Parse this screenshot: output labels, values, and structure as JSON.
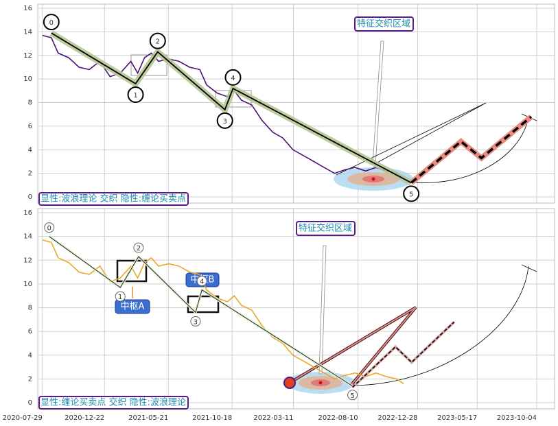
{
  "chart_data": [
    {
      "type": "line",
      "annotations": [
        "特征交织区域",
        "显性:波浪理论 交织 隐性:缠论买卖点"
      ],
      "ylim": [
        -0.52,
        16.35
      ],
      "yticks": [
        0,
        2,
        4,
        6,
        8,
        10,
        12,
        14,
        16
      ],
      "grid": true,
      "xlim": [
        "2020-07-18",
        "2023-11-15"
      ],
      "series": [
        {
          "color": "#4b0f7a",
          "x": [
            "2020-07-29",
            "2020-08-19",
            "2020-09-04",
            "2020-09-29",
            "2020-10-23",
            "2020-11-16",
            "2020-12-11",
            "2021-01-04",
            "2021-01-28",
            "2021-02-22",
            "2021-03-10",
            "2021-03-26",
            "2021-04-11",
            "2021-04-28",
            "2021-05-22",
            "2021-06-15",
            "2021-07-10",
            "2021-08-03",
            "2021-08-19",
            "2021-09-13",
            "2021-10-07",
            "2021-10-23",
            "2021-11-09",
            "2021-12-03",
            "2021-12-27",
            "2022-01-21",
            "2022-02-14",
            "2022-03-10",
            "2022-04-04",
            "2022-04-28",
            "2022-05-22",
            "2022-06-16",
            "2022-07-10",
            "2022-08-03",
            "2022-08-28",
            "2022-09-21",
            "2022-10-15",
            "2022-11-09",
            "2022-11-25"
          ],
          "values": [
            13.7,
            13.5,
            12.2,
            11.8,
            11,
            10.8,
            11.5,
            10.2,
            10.5,
            11.5,
            10.5,
            11.8,
            12.2,
            11.5,
            11.7,
            11.5,
            11,
            10.8,
            9.5,
            8.8,
            8.5,
            9,
            8.2,
            7.8,
            6.5,
            5.5,
            5,
            4,
            3.5,
            3,
            2.5,
            2,
            2.3,
            2.5,
            2.2,
            2.5,
            2.2,
            2,
            1.6
          ]
        },
        {
          "color": "#000000",
          "labels": [
            "0",
            "1",
            "2",
            "3",
            "4",
            "5"
          ],
          "x": [
            "2020-08-19",
            "2021-03-05",
            "2021-04-26",
            "2021-10-01",
            "2021-10-20",
            "2022-12-13"
          ],
          "values": [
            13.9,
            9.6,
            12.3,
            7.4,
            9.2,
            1.2
          ]
        },
        {
          "color": "#000000",
          "style": "dashed",
          "x": [
            "2022-12-13",
            "2023-04-09",
            "2023-05-27",
            "2023-09-21"
          ],
          "values": [
            1.2,
            4.7,
            3.3,
            6.8
          ]
        }
      ]
    },
    {
      "type": "line",
      "annotations": [
        "特征交织区域",
        "显性:缠论买卖点 交织 隐性:波浪理论",
        "中枢A",
        "中枢B"
      ],
      "ylim": [
        -0.52,
        16.35
      ],
      "yticks": [
        0,
        2,
        4,
        6,
        8,
        10,
        12,
        14,
        16
      ],
      "grid": true,
      "xlim": [
        "2020-07-18",
        "2023-11-15"
      ],
      "xticks": [
        "2020-07-29",
        "2020-12-22",
        "2021-05-21",
        "2021-10-18",
        "2022-03-11",
        "2022-08-10",
        "2022-12-28",
        "2023-05-17",
        "2023-10-04"
      ],
      "series": [
        {
          "color": "#eaa82a",
          "x": [
            "2020-07-29",
            "2020-08-19",
            "2020-09-04",
            "2020-09-29",
            "2020-10-23",
            "2020-11-16",
            "2020-12-11",
            "2021-01-04",
            "2021-01-28",
            "2021-02-22",
            "2021-03-10",
            "2021-03-26",
            "2021-04-11",
            "2021-04-28",
            "2021-05-22",
            "2021-06-15",
            "2021-07-10",
            "2021-08-03",
            "2021-08-19",
            "2021-09-13",
            "2021-10-07",
            "2021-10-23",
            "2021-11-09",
            "2021-12-03",
            "2021-12-27",
            "2022-01-21",
            "2022-02-14",
            "2022-03-10",
            "2022-04-04",
            "2022-04-28",
            "2022-05-22",
            "2022-06-16",
            "2022-07-10",
            "2022-08-03",
            "2022-08-28",
            "2022-09-21",
            "2022-10-15",
            "2022-11-09",
            "2022-11-25"
          ],
          "values": [
            13.7,
            13.5,
            12.2,
            11.8,
            11,
            10.8,
            11.5,
            10.2,
            10.5,
            11.5,
            10.5,
            11.8,
            12.2,
            11.5,
            11.7,
            11.5,
            11,
            10.8,
            9.5,
            8.8,
            8.5,
            9,
            8.2,
            7.8,
            6.5,
            5.5,
            5,
            4,
            3.5,
            3,
            2.5,
            2,
            2.3,
            2.5,
            2.2,
            2.5,
            2.2,
            2,
            1.6
          ]
        },
        {
          "color": "#1a2a1a",
          "labels": [
            "0",
            "1",
            "2",
            "3",
            "4",
            "5"
          ],
          "x": [
            "2020-08-14",
            "2021-01-28",
            "2021-03-12",
            "2021-07-24",
            "2021-08-08",
            "2022-07-28"
          ],
          "values": [
            14.0,
            9.7,
            12.3,
            7.6,
            9.5,
            1.4
          ]
        },
        {
          "color": "#000000",
          "style": "dashed",
          "x": [
            "2022-07-28",
            "2022-11-06",
            "2022-12-14",
            "2023-03-24"
          ],
          "values": [
            1.3,
            4.7,
            3.4,
            6.8
          ]
        }
      ]
    }
  ]
}
